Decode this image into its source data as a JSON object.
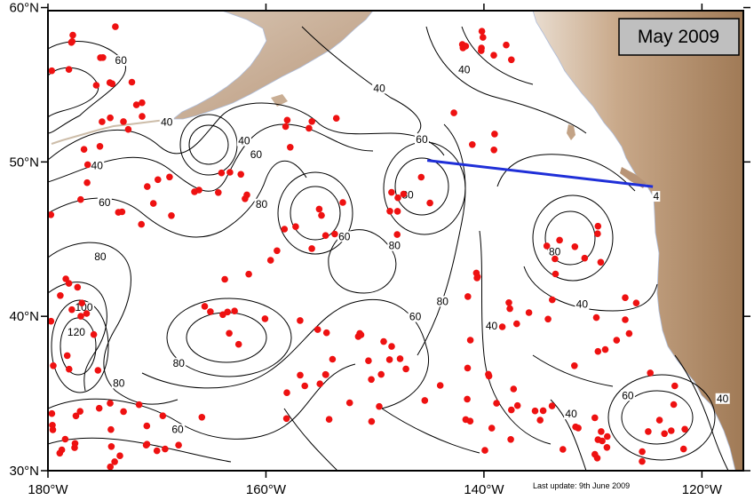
{
  "map": {
    "month_label": "May 2009",
    "last_update": "Last update: 9th June 2009",
    "x_ticks": [
      {
        "lon": -180,
        "label": "180°W"
      },
      {
        "lon": -160,
        "label": "160°W"
      },
      {
        "lon": -140,
        "label": "140°W"
      },
      {
        "lon": -120,
        "label": "120°W"
      }
    ],
    "y_ticks": [
      {
        "lat": 60,
        "label": "60°N"
      },
      {
        "lat": 50,
        "label": "50°N"
      },
      {
        "lat": 40,
        "label": "40°N"
      },
      {
        "lat": 30,
        "label": "30°N"
      }
    ],
    "extent": {
      "lon_min": -180,
      "lon_max": -116.2,
      "lat_min": 30,
      "lat_max": 59.8
    },
    "contour_labels": [
      {
        "text": "60",
        "lon": -173.3,
        "lat": 56.4
      },
      {
        "text": "40",
        "lon": -169.1,
        "lat": 52.4
      },
      {
        "text": "40",
        "lon": -175.5,
        "lat": 49.6
      },
      {
        "text": "60",
        "lon": -174.8,
        "lat": 47.2
      },
      {
        "text": "80",
        "lon": -175.2,
        "lat": 43.7
      },
      {
        "text": "100",
        "lon": -176.7,
        "lat": 40.4
      },
      {
        "text": "120",
        "lon": -177.4,
        "lat": 38.8
      },
      {
        "text": "80",
        "lon": -173.5,
        "lat": 35.5
      },
      {
        "text": "60",
        "lon": -168.1,
        "lat": 32.5
      },
      {
        "text": "40",
        "lon": -162.0,
        "lat": 51.2
      },
      {
        "text": "60",
        "lon": -160.9,
        "lat": 50.3
      },
      {
        "text": "80",
        "lon": -160.4,
        "lat": 47.1
      },
      {
        "text": "80",
        "lon": -168.0,
        "lat": 36.8
      },
      {
        "text": "60",
        "lon": -152.8,
        "lat": 45.0
      },
      {
        "text": "40",
        "lon": -149.6,
        "lat": 54.6
      },
      {
        "text": "80",
        "lon": -148.2,
        "lat": 44.4
      },
      {
        "text": "60",
        "lon": -145.7,
        "lat": 51.3
      },
      {
        "text": "80",
        "lon": -147.0,
        "lat": 47.7
      },
      {
        "text": "40",
        "lon": -141.8,
        "lat": 55.8
      },
      {
        "text": "60",
        "lon": -146.3,
        "lat": 39.8
      },
      {
        "text": "80",
        "lon": -143.8,
        "lat": 40.8
      },
      {
        "text": "40",
        "lon": -139.3,
        "lat": 39.2
      },
      {
        "text": "80",
        "lon": -133.5,
        "lat": 44.0
      },
      {
        "text": "40",
        "lon": -131.0,
        "lat": 40.6
      },
      {
        "text": "4",
        "lon": -124.2,
        "lat": 47.6
      },
      {
        "text": "60",
        "lon": -126.8,
        "lat": 34.7
      },
      {
        "text": "40",
        "lon": -132.0,
        "lat": 33.5
      },
      {
        "text": "40",
        "lon": -118.1,
        "lat": 34.5
      }
    ],
    "section_line": {
      "start": {
        "lon": -145.2,
        "lat": 50.1
      },
      "end": {
        "lon": -124.5,
        "lat": 48.4
      }
    }
  }
}
